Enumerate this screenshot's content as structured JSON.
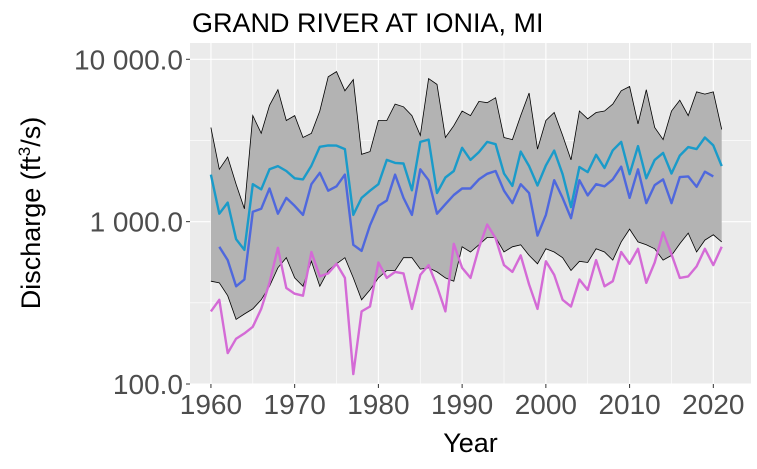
{
  "chart_data": {
    "type": "line",
    "title": "GRAND RIVER AT IONIA, MI",
    "xlabel": "Year",
    "ylabel": {
      "prefix": "Discharge (ft",
      "superscript": "3",
      "suffix": "/s)"
    },
    "y_scale": "log",
    "xlim": [
      1957.5,
      2024.5
    ],
    "ylim": [
      100,
      12600
    ],
    "x_ticks": [
      1960,
      1970,
      1980,
      1990,
      2000,
      2010,
      2020
    ],
    "y_ticks": [
      {
        "value": 100,
        "label": "100.0"
      },
      {
        "value": 1000,
        "label": "1 000.0"
      },
      {
        "value": 10000,
        "label": "10 000.0"
      }
    ],
    "grid": true,
    "legend": "none",
    "colors": {
      "panel": "#ebebeb",
      "grid": "#ffffff",
      "band_fill": "#b3b3b3",
      "band_line": "#000000",
      "upper_series": "#1a9bc9",
      "middle_series": "#4f68dd",
      "lower_series": "#d46bd6"
    },
    "band": {
      "x": [
        1960,
        1961,
        1962,
        1963,
        1964,
        1965,
        1966,
        1967,
        1968,
        1969,
        1970,
        1971,
        1972,
        1973,
        1974,
        1975,
        1976,
        1977,
        1978,
        1979,
        1980,
        1981,
        1982,
        1983,
        1984,
        1985,
        1986,
        1987,
        1988,
        1989,
        1990,
        1991,
        1992,
        1993,
        1994,
        1995,
        1996,
        1997,
        1998,
        1999,
        2000,
        2001,
        2002,
        2003,
        2004,
        2005,
        2006,
        2007,
        2008,
        2009,
        2010,
        2011,
        2012,
        2013,
        2014,
        2015,
        2016,
        2017,
        2018,
        2019,
        2020,
        2021
      ],
      "upper": [
        3800,
        2100,
        2500,
        1700,
        1200,
        4500,
        3500,
        5200,
        6500,
        4200,
        4500,
        3300,
        3500,
        4800,
        7800,
        8400,
        6400,
        7500,
        2600,
        2700,
        4200,
        4200,
        5300,
        5100,
        4500,
        3400,
        7600,
        7000,
        3300,
        3900,
        4800,
        4500,
        5500,
        5400,
        5800,
        3300,
        3200,
        4500,
        6200,
        2800,
        4200,
        4700,
        3400,
        2400,
        4800,
        4300,
        4700,
        4800,
        5300,
        6400,
        6800,
        4000,
        6500,
        3800,
        3200,
        4800,
        5600,
        4500,
        6300,
        6100,
        6300,
        3700
      ],
      "lower": [
        430,
        420,
        350,
        250,
        270,
        290,
        330,
        400,
        520,
        600,
        450,
        400,
        570,
        400,
        500,
        550,
        600,
        450,
        330,
        380,
        450,
        500,
        500,
        600,
        600,
        510,
        520,
        490,
        450,
        430,
        700,
        650,
        720,
        800,
        800,
        650,
        700,
        720,
        620,
        550,
        680,
        650,
        600,
        500,
        570,
        560,
        680,
        650,
        580,
        750,
        900,
        750,
        720,
        680,
        580,
        620,
        730,
        850,
        650,
        770,
        830,
        750
      ]
    },
    "series": [
      {
        "role": "upper",
        "x": [
          1960,
          1961,
          1962,
          1963,
          1964,
          1965,
          1966,
          1967,
          1968,
          1969,
          1970,
          1971,
          1972,
          1973,
          1974,
          1975,
          1976,
          1977,
          1978,
          1979,
          1980,
          1981,
          1982,
          1983,
          1984,
          1985,
          1986,
          1987,
          1988,
          1989,
          1990,
          1991,
          1992,
          1993,
          1994,
          1995,
          1996,
          1997,
          1998,
          1999,
          2000,
          2001,
          2002,
          2003,
          2004,
          2005,
          2006,
          2007,
          2008,
          2009,
          2010,
          2011,
          2012,
          2013,
          2014,
          2015,
          2016,
          2017,
          2018,
          2019,
          2020,
          2021
        ],
        "values": [
          1950,
          1120,
          1310,
          780,
          670,
          1700,
          1580,
          2100,
          2200,
          2050,
          1850,
          1820,
          2210,
          2890,
          2950,
          2940,
          2800,
          1100,
          1400,
          1550,
          1700,
          2400,
          2300,
          2280,
          1560,
          3100,
          3200,
          1500,
          1870,
          2050,
          2850,
          2400,
          2680,
          3100,
          3000,
          1980,
          1660,
          2700,
          2200,
          1670,
          2220,
          2740,
          1960,
          1230,
          2170,
          2020,
          2580,
          2140,
          2750,
          3100,
          1960,
          2920,
          1850,
          2400,
          2650,
          1980,
          2550,
          2880,
          2800,
          3300,
          2950,
          2200
        ]
      },
      {
        "role": "middle",
        "x": [
          1961,
          1962,
          1963,
          1964,
          1965,
          1966,
          1967,
          1968,
          1969,
          1970,
          1971,
          1972,
          1973,
          1974,
          1975,
          1976,
          1977,
          1978,
          1979,
          1980,
          1981,
          1982,
          1983,
          1984,
          1985,
          1986,
          1987,
          1988,
          1989,
          1990,
          1991,
          1992,
          1993,
          1994,
          1995,
          1996,
          1997,
          1998,
          1999,
          2000,
          2001,
          2002,
          2003,
          2004,
          2005,
          2006,
          2007,
          2008,
          2009,
          2010,
          2011,
          2012,
          2013,
          2014,
          2015,
          2016,
          2017,
          2018,
          2019,
          2020
        ],
        "values": [
          700,
          580,
          400,
          440,
          1150,
          1200,
          1600,
          1120,
          1400,
          1250,
          1100,
          1700,
          2000,
          1550,
          1650,
          1950,
          720,
          660,
          950,
          1250,
          1350,
          1950,
          1400,
          1100,
          2100,
          1800,
          1120,
          1280,
          1460,
          1600,
          1600,
          1820,
          1970,
          2050,
          1550,
          1300,
          1700,
          1500,
          820,
          1100,
          1800,
          1400,
          1050,
          1800,
          1450,
          1700,
          1650,
          1820,
          2180,
          1400,
          2100,
          1300,
          1680,
          1820,
          1300,
          1880,
          1900,
          1640,
          2030,
          1900
        ]
      },
      {
        "role": "lower",
        "x": [
          1960,
          1961,
          1962,
          1963,
          1964,
          1965,
          1966,
          1967,
          1968,
          1969,
          1970,
          1971,
          1972,
          1973,
          1974,
          1975,
          1976,
          1977,
          1978,
          1979,
          1980,
          1981,
          1982,
          1983,
          1984,
          1985,
          1986,
          1987,
          1988,
          1989,
          1990,
          1991,
          1992,
          1993,
          1994,
          1995,
          1996,
          1997,
          1998,
          1999,
          2000,
          2001,
          2002,
          2003,
          2004,
          2005,
          2006,
          2007,
          2008,
          2009,
          2010,
          2011,
          2012,
          2013,
          2014,
          2015,
          2016,
          2017,
          2018,
          2019,
          2020,
          2021
        ],
        "values": [
          280,
          330,
          155,
          190,
          205,
          225,
          290,
          420,
          690,
          390,
          360,
          350,
          650,
          460,
          480,
          550,
          450,
          115,
          280,
          300,
          560,
          450,
          490,
          480,
          290,
          470,
          540,
          400,
          280,
          730,
          520,
          450,
          690,
          960,
          790,
          540,
          490,
          620,
          410,
          290,
          570,
          470,
          330,
          300,
          440,
          380,
          580,
          400,
          430,
          650,
          550,
          680,
          420,
          560,
          860,
          630,
          450,
          460,
          530,
          680,
          540,
          700
        ]
      }
    ]
  }
}
